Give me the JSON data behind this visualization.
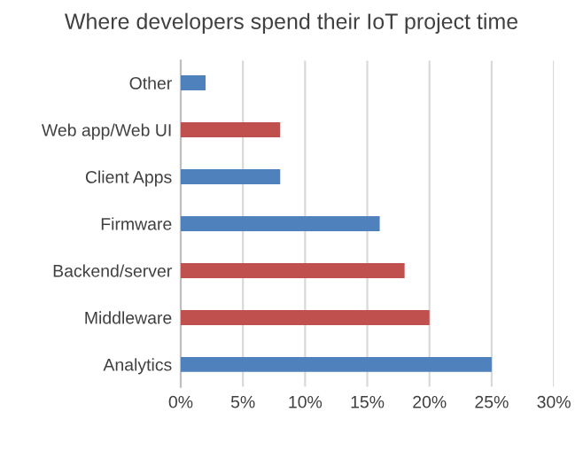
{
  "chart_data": {
    "type": "bar",
    "orientation": "horizontal",
    "title": "Where developers spend their IoT project time",
    "categories": [
      "Other",
      "Web app/Web UI",
      "Client Apps",
      "Firmware",
      "Backend/server",
      "Middleware",
      "Analytics"
    ],
    "values": [
      2,
      8,
      8,
      16,
      18,
      20,
      25
    ],
    "colors": [
      "#4f81bd",
      "#c0504d",
      "#4f81bd",
      "#4f81bd",
      "#c0504d",
      "#c0504d",
      "#4f81bd"
    ],
    "xlim": [
      0,
      30
    ],
    "xticks": [
      {
        "value": 0,
        "label": "0%"
      },
      {
        "value": 5,
        "label": "5%"
      },
      {
        "value": 10,
        "label": "10%"
      },
      {
        "value": 15,
        "label": "15%"
      },
      {
        "value": 20,
        "label": "20%"
      },
      {
        "value": 25,
        "label": "25%"
      },
      {
        "value": 30,
        "label": "30%"
      }
    ],
    "grid": "x"
  }
}
